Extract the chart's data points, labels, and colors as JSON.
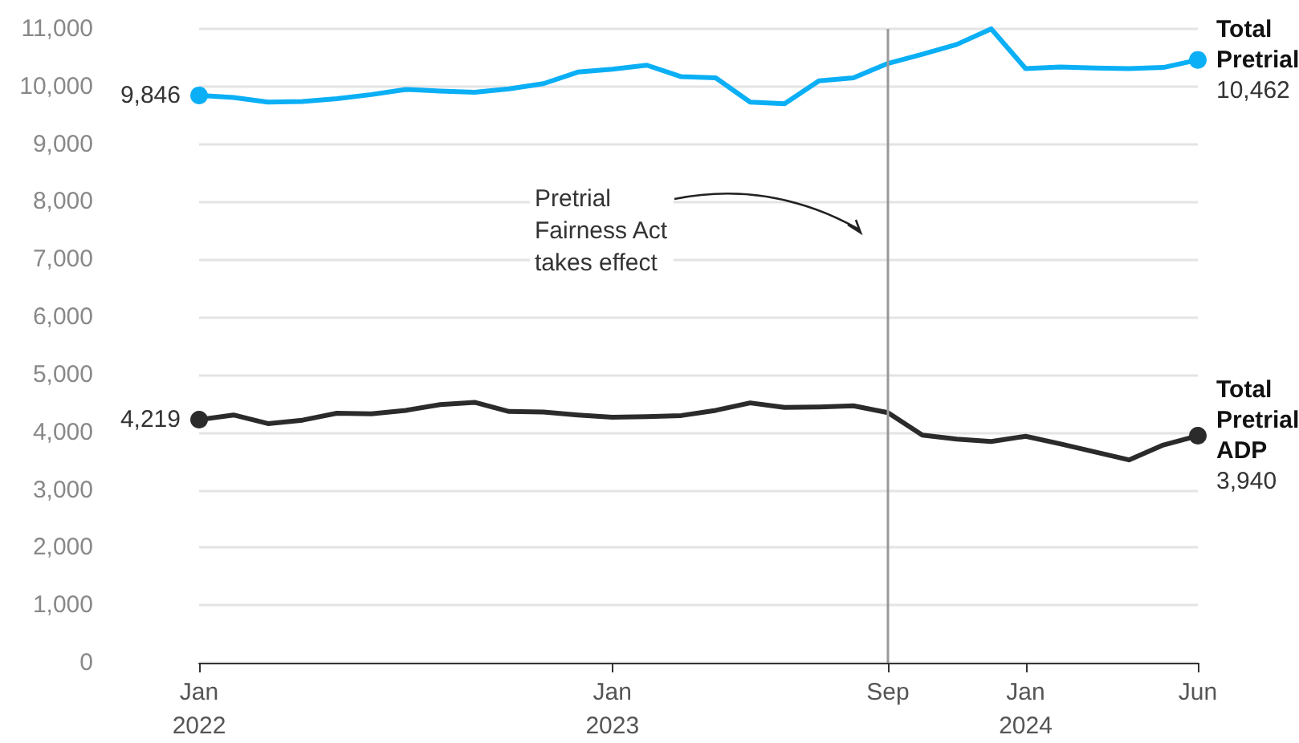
{
  "chart_data": {
    "type": "line",
    "categories": [
      "Jan\n2022",
      null,
      null,
      null,
      null,
      null,
      null,
      null,
      null,
      null,
      null,
      null,
      "Jan\n2023",
      null,
      null,
      null,
      null,
      null,
      null,
      null,
      "Sep",
      null,
      null,
      null,
      "Jan\n2024",
      null,
      null,
      null,
      null,
      "Jun"
    ],
    "series": [
      {
        "name": "Total Pretrial",
        "color": "#0aaff5",
        "values": [
          9846,
          9810,
          9730,
          9740,
          9790,
          9860,
          9950,
          9920,
          9900,
          9960,
          10050,
          10250,
          10300,
          10370,
          10170,
          10150,
          9730,
          9700,
          10100,
          10150,
          10400,
          10560,
          10730,
          11000,
          10310,
          10340,
          10320,
          10310,
          10330,
          10462
        ],
        "value_labels": [
          "9,846",
          null,
          null,
          null,
          null,
          null,
          null,
          null,
          null,
          null,
          null,
          null,
          null,
          null,
          null,
          null,
          null,
          null,
          null,
          null,
          null,
          null,
          null,
          null,
          null,
          null,
          null,
          null,
          null,
          "10,462"
        ]
      },
      {
        "name": "Total Pretrial ADP",
        "color": "#2b2b2b",
        "values": [
          4219,
          4300,
          4150,
          4210,
          4330,
          4320,
          4380,
          4480,
          4520,
          4360,
          4350,
          4300,
          4260,
          4270,
          4290,
          4380,
          4510,
          4430,
          4440,
          4460,
          4340,
          3950,
          3880,
          3840,
          3930,
          3800,
          3660,
          3520,
          3780,
          3940
        ],
        "value_labels": [
          "4,219",
          null,
          null,
          null,
          null,
          null,
          null,
          null,
          null,
          null,
          null,
          null,
          null,
          null,
          null,
          null,
          null,
          null,
          null,
          null,
          null,
          null,
          null,
          null,
          null,
          null,
          null,
          null,
          null,
          "3,940"
        ]
      }
    ],
    "ylim": [
      0,
      11000
    ],
    "yticks": [
      0,
      {
        "value": 1000,
        "label": "1,000"
      },
      {
        "value": 2000,
        "label": "2,000"
      },
      {
        "value": 3000,
        "label": "3,000"
      },
      {
        "value": 4000,
        "label": "4,000"
      },
      {
        "value": 5000,
        "label": "5,000"
      },
      {
        "value": 6000,
        "label": "6,000"
      },
      {
        "value": 7000,
        "label": "7,000"
      },
      {
        "value": 8000,
        "label": "8,000"
      },
      {
        "value": 9000,
        "label": "9,000"
      },
      {
        "value": 10000,
        "label": "10,000"
      },
      {
        "value": 11000,
        "label": "11,000"
      }
    ],
    "grid": "y",
    "legend": false,
    "ref_lines": [
      {
        "axis": "x",
        "value": "Sep",
        "color": "#999999"
      }
    ],
    "annotations": [
      "Pretrial\nFairness Act\ntakes effect"
    ]
  }
}
